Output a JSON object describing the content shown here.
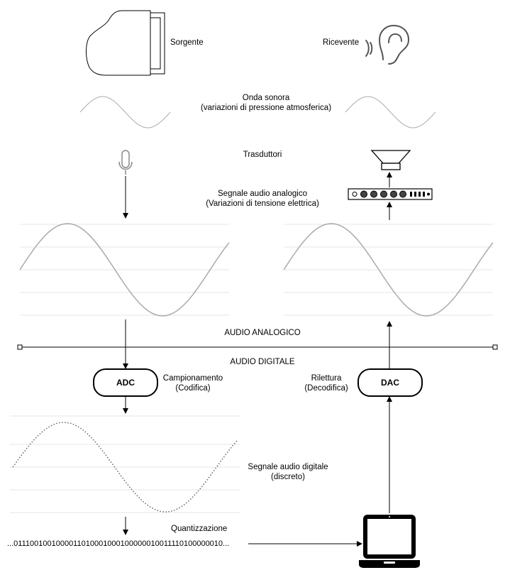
{
  "labels": {
    "source": "Sorgente",
    "receiver": "Ricevente",
    "sound_wave_title": "Onda sonora",
    "sound_wave_sub": "(variazioni di pressione atmosferica)",
    "transducers": "Trasduttori",
    "analog_signal_title": "Segnale audio analogico",
    "analog_signal_sub": "(Variazioni di tensione elettrica)",
    "audio_analog": "AUDIO ANALOGICO",
    "audio_digital": "AUDIO DIGITALE",
    "sampling_title": "Campionamento",
    "sampling_sub": "(Codifica)",
    "playback_title": "Rilettura",
    "playback_sub": "(Decodifica)",
    "digital_signal_title": "Segnale audio digitale",
    "digital_signal_sub": "(discreto)",
    "quantization": "Quantizzazione",
    "bitstream": "...0111001001000011010001000100000010011110100000010..."
  },
  "blocks": {
    "adc": "ADC",
    "dac": "DAC"
  },
  "icons": {
    "source": "grand-piano-icon",
    "receiver": "ear-icon",
    "input_transducer": "microphone-icon",
    "output_transducer": "loudspeaker-icon",
    "amplifier": "amplifier-icon",
    "computer": "laptop-icon"
  },
  "colors": {
    "wave": "#aaaaaa",
    "grid": "#e6e6e6",
    "line": "#000000"
  }
}
